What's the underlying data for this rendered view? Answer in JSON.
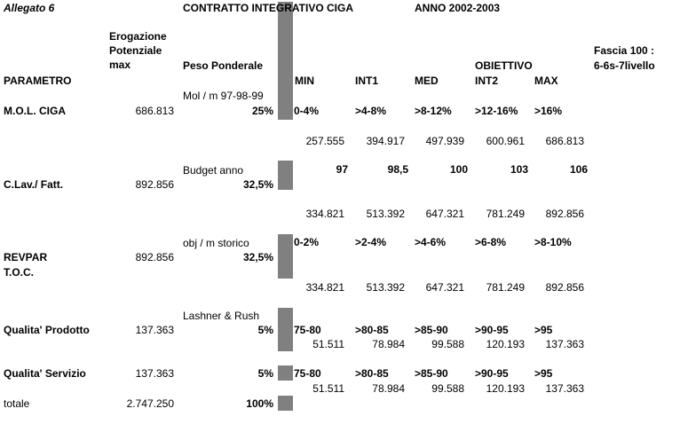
{
  "header": {
    "allegato": "Allegato 6",
    "title": "CONTRATTO INTEGRATIVO CIGA",
    "anno": "ANNO 2002-2003",
    "fascia": [
      "Fascia 100 :",
      "6-6s-7livello"
    ]
  },
  "columns": {
    "parametro": "PARAMETRO",
    "erogazione": [
      "Erogazione",
      "Potenziale",
      "max"
    ],
    "peso": "Peso Ponderale",
    "obiettivo": "OBIETTIVO",
    "min": "MIN",
    "int1": "INT1",
    "med": "MED",
    "int2": "INT2",
    "max": "MAX"
  },
  "rows": [
    {
      "name": "M.O.L. CIGA",
      "erogazione": "686.813",
      "note": "Mol / m 97-98-99",
      "peso": "25%",
      "ranges": [
        "0-4%",
        ">4-8%",
        ">8-12%",
        ">12-16%",
        ">16%"
      ],
      "amounts": [
        "257.555",
        "394.917",
        "497.939",
        "600.961",
        "686.813"
      ]
    },
    {
      "name": "C.Lav./ Fatt.",
      "erogazione": "892.856",
      "note": "Budget anno",
      "peso": "32,5%",
      "ranges": [
        "97",
        "98,5",
        "100",
        "103",
        "106"
      ],
      "amounts": [
        "334.821",
        "513.392",
        "647.321",
        "781.249",
        "892.856"
      ]
    },
    {
      "name": [
        "REVPAR",
        "T.O.C."
      ],
      "erogazione": "892.856",
      "note": "obj / m storico",
      "peso": "32,5%",
      "ranges": [
        "0-2%",
        ">2-4%",
        ">4-6%",
        ">6-8%",
        ">8-10%"
      ],
      "amounts": [
        "334.821",
        "513.392",
        "647.321",
        "781.249",
        "892.856"
      ]
    },
    {
      "name": "Qualita' Prodotto",
      "erogazione": "137.363",
      "note": "Lashner & Rush",
      "peso": "5%",
      "ranges": [
        "75-80",
        ">80-85",
        ">85-90",
        ">90-95",
        ">95"
      ],
      "amounts": [
        "51.511",
        "78.984",
        "99.588",
        "120.193",
        "137.363"
      ]
    },
    {
      "name": "Qualita' Servizio",
      "erogazione": "137.363",
      "peso": "5%",
      "ranges": [
        "75-80",
        ">80-85",
        ">85-90",
        ">90-95",
        ">95"
      ],
      "amounts": [
        "51.511",
        "78.984",
        "99.588",
        "120.193",
        "137.363"
      ]
    }
  ],
  "totale": {
    "label": "totale",
    "erogazione": "2.747.250",
    "peso": "100%"
  }
}
